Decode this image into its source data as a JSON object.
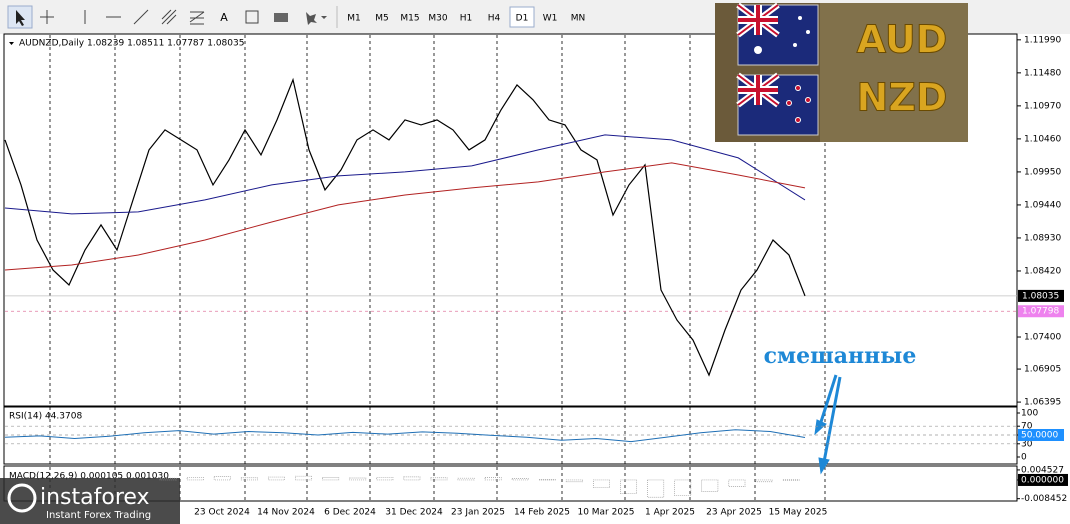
{
  "toolbar": {
    "text_tool": "A",
    "timeframes": [
      "M1",
      "M5",
      "M15",
      "M30",
      "H1",
      "H4",
      "D1",
      "W1",
      "MN"
    ],
    "selected": "D1"
  },
  "banner": {
    "top": "AUD",
    "bottom": "NZD"
  },
  "logo": {
    "name": "instaforex",
    "tagline": "Instant Forex Trading"
  },
  "chart_data": [
    {
      "type": "line",
      "title": "AUDNZD,Daily 1.08239 1.08511 1.07787 1.08035",
      "annotation": "смешанные",
      "x_labels": [
        "23 Oct 2024",
        "14 Nov 2024",
        "6 Dec 2024",
        "31 Dec 2024",
        "23 Jan 2025",
        "14 Feb 2025",
        "10 Mar 2025",
        "1 Apr 2025",
        "23 Apr 2025",
        "15 May 2025"
      ],
      "series": [
        {
          "color": "#000000",
          "values": [
            1.10444,
            1.09749,
            1.08899,
            1.08435,
            1.08203,
            1.08744,
            1.09131,
            1.08744,
            1.09517,
            1.1029,
            1.10599,
            1.10444,
            1.1029,
            1.09749,
            1.10135,
            1.10599,
            1.10213,
            1.10754,
            1.11372,
            1.1029,
            1.09672,
            1.09981,
            1.10444,
            1.10599,
            1.10444,
            1.10754,
            1.10676,
            1.10754,
            1.10599,
            1.1029,
            1.10444,
            1.10908,
            1.11294,
            1.11063,
            1.10754,
            1.10676,
            1.1029,
            1.10135,
            1.09285,
            1.09749,
            1.10058,
            1.08126,
            1.07662,
            1.07353,
            1.06812,
            1.07508,
            1.08126,
            1.08435,
            1.08899,
            1.08667,
            1.08035
          ]
        },
        {
          "color": "#1a1a8c",
          "values": [
            1.09393,
            1.09301,
            1.09332,
            1.09517,
            1.09749,
            1.09888,
            1.0995,
            1.10043,
            1.1029,
            1.10522,
            1.10444,
            1.10166,
            1.09517
          ]
        },
        {
          "color": "#b22222",
          "values": [
            1.08435,
            1.08512,
            1.08667,
            1.08899,
            1.09177,
            1.0944,
            1.09594,
            1.09703,
            1.09795,
            1.0995,
            1.10089,
            1.09903,
            1.09703
          ]
        }
      ],
      "ylim": [
        1.0635,
        1.1208
      ],
      "yticks": [
        {
          "value": 1.1199,
          "label": "1.11990"
        },
        {
          "value": 1.1148,
          "label": "1.11480"
        },
        {
          "value": 1.1097,
          "label": "1.10970"
        },
        {
          "value": 1.1046,
          "label": "1.10460"
        },
        {
          "value": 1.0995,
          "label": "1.09950"
        },
        {
          "value": 1.0944,
          "label": "1.09440"
        },
        {
          "value": 1.0893,
          "label": "1.08930"
        },
        {
          "value": 1.0842,
          "label": "1.08420"
        },
        {
          "value": 1.074,
          "label": "1.07400"
        },
        {
          "value": 1.06905,
          "label": "1.06905"
        },
        {
          "value": 1.06395,
          "label": "1.06395"
        }
      ],
      "current": {
        "value": 1.08035,
        "label": "1.08035"
      },
      "ask": {
        "value": 1.07798,
        "label": "1.07798"
      }
    },
    {
      "type": "line",
      "title": "RSI(14) 44.3708",
      "color": "#1f6fb5",
      "values": [
        45,
        48,
        42,
        47,
        55,
        60,
        52,
        58,
        55,
        50,
        56,
        52,
        57,
        54,
        49,
        45,
        38,
        42,
        35,
        45,
        55,
        62,
        58,
        44.3708
      ],
      "ylim": [
        0,
        100
      ],
      "yticks": [
        100,
        70,
        50,
        30,
        0
      ],
      "level": {
        "value": 50,
        "label": "50.0000"
      }
    },
    {
      "type": "bar",
      "title": "MACD(12,26,9) 0.000105 0.001030",
      "color": "#9a9a9a",
      "values": [
        0.0008,
        0.0012,
        0.0015,
        0.001,
        0.0013,
        0.0017,
        0.0011,
        0.0009,
        0.0012,
        0.0014,
        0.001,
        0.0008,
        0.0011,
        0.0006,
        0.0002,
        -0.0008,
        -0.0035,
        -0.0062,
        -0.0078,
        -0.0071,
        -0.0052,
        -0.003,
        -0.0008,
        0.000105
      ],
      "ylim": [
        -0.0095,
        0.0054
      ],
      "yticks": [
        0.004527,
        {
          "value": 0,
          "label": "0.000000"
        },
        -0.008452
      ]
    }
  ]
}
